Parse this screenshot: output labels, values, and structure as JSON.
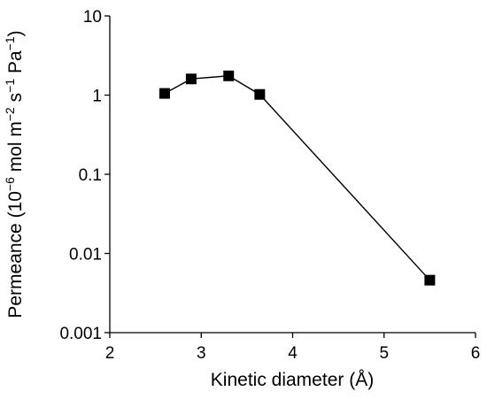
{
  "chart_data": {
    "type": "scatter",
    "title": "",
    "xlabel": "Kinetic diameter (Å)",
    "ylabel": {
      "prefix": "Permeance (10",
      "exp1": "−6",
      "mid1": " mol m",
      "exp2": "−2",
      "mid2": " s",
      "exp3": "−1",
      "mid3": " Pa",
      "exp4": "−1",
      "suffix": ")"
    },
    "xlim": [
      2,
      6
    ],
    "ylim": [
      0.001,
      10
    ],
    "yscale": "log",
    "xticks": [
      2,
      3,
      4,
      5,
      6
    ],
    "xtick_labels": [
      "2",
      "3",
      "4",
      "5",
      "6"
    ],
    "yticks": [
      0.001,
      0.01,
      0.1,
      1,
      10
    ],
    "ytick_labels": [
      "0.001",
      "0.01",
      "0.1",
      "1",
      "10"
    ],
    "grid": false,
    "legend": "none",
    "marker": "square",
    "connected": true,
    "color": "#000000",
    "series": [
      {
        "x": [
          2.6,
          2.89,
          3.3,
          3.64,
          5.5
        ],
        "y": [
          1.05,
          1.6,
          1.75,
          1.02,
          0.0046
        ]
      }
    ]
  }
}
